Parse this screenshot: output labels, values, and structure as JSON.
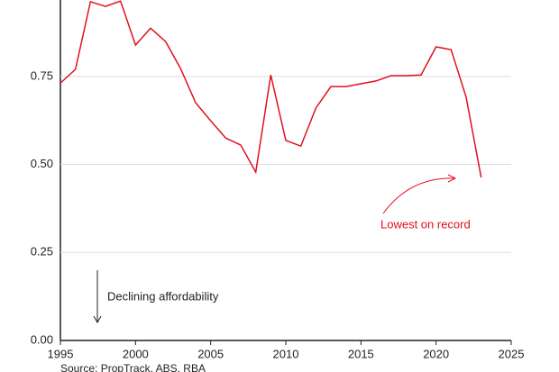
{
  "chart_data": {
    "type": "line",
    "x": [
      1995,
      1996,
      1997,
      1998,
      1999,
      2000,
      2001,
      2002,
      2003,
      2004,
      2005,
      2006,
      2007,
      2008,
      2009,
      2010,
      2011,
      2012,
      2013,
      2014,
      2015,
      2016,
      2017,
      2018,
      2019,
      2020,
      2021,
      2022,
      2023
    ],
    "series": [
      {
        "color": "#e0101e",
        "values": [
          0.731,
          0.77,
          0.962,
          0.949,
          0.964,
          0.839,
          0.887,
          0.849,
          0.772,
          0.675,
          0.624,
          0.575,
          0.555,
          0.478,
          0.754,
          0.568,
          0.552,
          0.66,
          0.721,
          0.721,
          0.729,
          0.737,
          0.752,
          0.752,
          0.754,
          0.834,
          0.826,
          0.691,
          0.463
        ]
      }
    ],
    "xlim": [
      1995,
      2025
    ],
    "xticks": [
      1995,
      2000,
      2005,
      2010,
      2015,
      2020,
      2025
    ],
    "ylim": [
      0,
      0.967
    ],
    "yticks": [
      {
        "value": 0,
        "label": "0.00"
      },
      {
        "value": 0.25,
        "label": "0.25"
      },
      {
        "value": 0.5,
        "label": "0.50"
      },
      {
        "value": 0.75,
        "label": "0.75"
      }
    ],
    "grid": true,
    "annotations": [
      "Lowest on record",
      "Declining affordability"
    ],
    "source": "Source: PropTrack, ABS, RBA"
  }
}
